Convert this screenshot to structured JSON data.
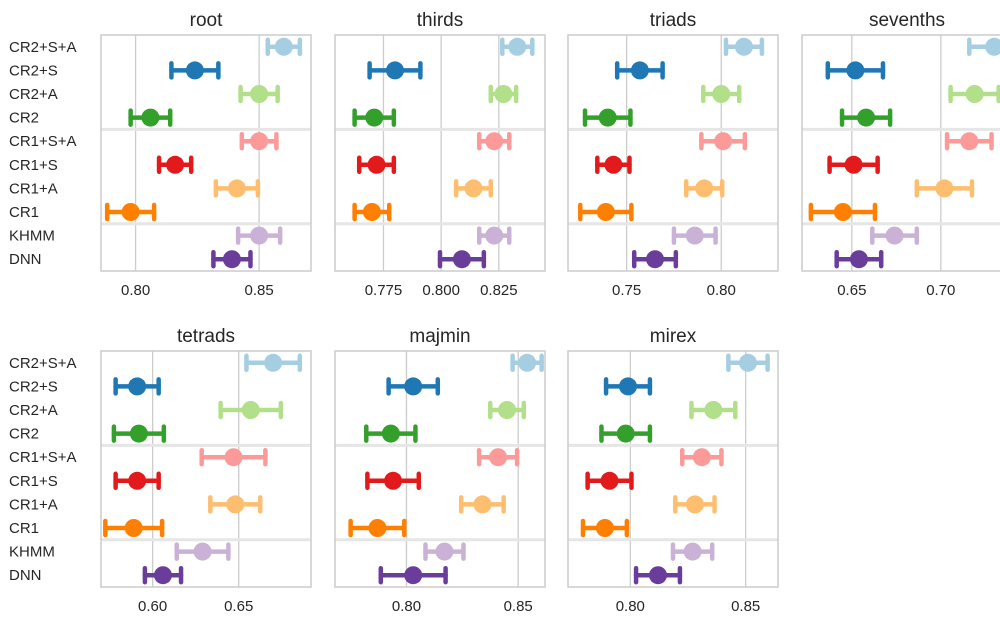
{
  "colors": {
    "CR2+S+A": "#a6cee3",
    "CR2+S": "#1f78b4",
    "CR2+A": "#b2df8a",
    "CR2": "#33a02c",
    "CR1+S+A": "#fb9a99",
    "CR1+S": "#e31a1c",
    "CR1+A": "#fdbf6f",
    "CR1": "#ff7f00",
    "KHMM": "#cab2d6",
    "DNN": "#6a3d9a",
    "grid": "#cccccc",
    "separator": "#e6e6e6",
    "frame": "#cccccc"
  },
  "chart_data": [
    {
      "type": "errorbar",
      "title": "root",
      "categories": [
        "CR2+S+A",
        "CR2+S",
        "CR2+A",
        "CR2",
        "CR1+S+A",
        "CR1+S",
        "CR1+A",
        "CR1",
        "KHMM",
        "DNN"
      ],
      "values": [
        0.86,
        0.824,
        0.85,
        0.806,
        0.85,
        0.816,
        0.841,
        0.798,
        0.85,
        0.839
      ],
      "errors": [
        0.0065,
        0.0095,
        0.0075,
        0.008,
        0.007,
        0.0065,
        0.0085,
        0.0095,
        0.0085,
        0.0075
      ],
      "xlim": [
        0.786,
        0.871
      ],
      "xticks": [
        0.8,
        0.85
      ],
      "xtick_labels": [
        "0.80",
        "0.85"
      ],
      "separators_after": [
        3,
        7
      ],
      "grid": true
    },
    {
      "type": "errorbar",
      "title": "thirds",
      "categories": [
        "CR2+S+A",
        "CR2+S",
        "CR2+A",
        "CR2",
        "CR1+S+A",
        "CR1+S",
        "CR1+A",
        "CR1",
        "KHMM",
        "DNN"
      ],
      "values": [
        0.833,
        0.78,
        0.827,
        0.771,
        0.823,
        0.772,
        0.814,
        0.77,
        0.823,
        0.809
      ],
      "errors": [
        0.0065,
        0.011,
        0.0055,
        0.0085,
        0.0065,
        0.0075,
        0.0075,
        0.0075,
        0.0065,
        0.0095
      ],
      "xlim": [
        0.754,
        0.845
      ],
      "xticks": [
        0.775,
        0.8,
        0.825
      ],
      "xtick_labels": [
        "0.775",
        "0.800",
        "0.825"
      ],
      "separators_after": [
        3,
        7
      ],
      "grid": true
    },
    {
      "type": "errorbar",
      "title": "triads",
      "categories": [
        "CR2+S+A",
        "CR2+S",
        "CR2+A",
        "CR2",
        "CR1+S+A",
        "CR1+S",
        "CR1+A",
        "CR1",
        "KHMM",
        "DNN"
      ],
      "values": [
        0.812,
        0.757,
        0.8,
        0.74,
        0.801,
        0.743,
        0.791,
        0.739,
        0.786,
        0.765
      ],
      "errors": [
        0.0095,
        0.012,
        0.0095,
        0.012,
        0.0115,
        0.0085,
        0.0095,
        0.0135,
        0.011,
        0.011
      ],
      "xlim": [
        0.719,
        0.83
      ],
      "xticks": [
        0.75,
        0.8
      ],
      "xtick_labels": [
        "0.75",
        "0.80"
      ],
      "separators_after": [
        3,
        7
      ],
      "grid": true
    },
    {
      "type": "errorbar",
      "title": "sevenths",
      "categories": [
        "CR2+S+A",
        "CR2+S",
        "CR2+A",
        "CR2",
        "CR1+S+A",
        "CR1+S",
        "CR1+A",
        "CR1",
        "KHMM",
        "DNN"
      ],
      "values": [
        0.73,
        0.652,
        0.719,
        0.658,
        0.716,
        0.651,
        0.702,
        0.645,
        0.674,
        0.654
      ],
      "errors": [
        0.014,
        0.0155,
        0.0135,
        0.0135,
        0.0125,
        0.0135,
        0.0155,
        0.018,
        0.0125,
        0.0125
      ],
      "xlim": [
        0.622,
        0.74
      ],
      "xticks": [
        0.65,
        0.7
      ],
      "xtick_labels": [
        "0.65",
        "0.70"
      ],
      "separators_after": [
        3,
        7
      ],
      "grid": true
    },
    {
      "type": "errorbar",
      "title": "tetrads",
      "categories": [
        "CR2+S+A",
        "CR2+S",
        "CR2+A",
        "CR2",
        "CR1+S+A",
        "CR1+S",
        "CR1+A",
        "CR1",
        "KHMM",
        "DNN"
      ],
      "values": [
        0.67,
        0.591,
        0.657,
        0.592,
        0.647,
        0.591,
        0.648,
        0.589,
        0.629,
        0.606
      ],
      "errors": [
        0.0155,
        0.0125,
        0.0175,
        0.0145,
        0.0185,
        0.0125,
        0.0145,
        0.0165,
        0.015,
        0.0105
      ],
      "xlim": [
        0.57,
        0.692
      ],
      "xticks": [
        0.6,
        0.65
      ],
      "xtick_labels": [
        "0.60",
        "0.65"
      ],
      "separators_after": [
        3,
        7
      ],
      "grid": true
    },
    {
      "type": "errorbar",
      "title": "majmin",
      "categories": [
        "CR2+S+A",
        "CR2+S",
        "CR2+A",
        "CR2",
        "CR1+S+A",
        "CR1+S",
        "CR1+A",
        "CR1",
        "KHMM",
        "DNN"
      ],
      "values": [
        0.854,
        0.803,
        0.845,
        0.793,
        0.841,
        0.794,
        0.834,
        0.787,
        0.817,
        0.803
      ],
      "errors": [
        0.0065,
        0.011,
        0.0075,
        0.011,
        0.0085,
        0.0115,
        0.0095,
        0.012,
        0.0085,
        0.0145
      ],
      "xlim": [
        0.768,
        0.862
      ],
      "xticks": [
        0.8,
        0.85
      ],
      "xtick_labels": [
        "0.80",
        "0.85"
      ],
      "separators_after": [
        3,
        7
      ],
      "grid": true
    },
    {
      "type": "errorbar",
      "title": "mirex",
      "categories": [
        "CR2+S+A",
        "CR2+S",
        "CR2+A",
        "CR2",
        "CR1+S+A",
        "CR1+S",
        "CR1+A",
        "CR1",
        "KHMM",
        "DNN"
      ],
      "values": [
        0.851,
        0.799,
        0.836,
        0.798,
        0.831,
        0.791,
        0.828,
        0.789,
        0.827,
        0.812
      ],
      "errors": [
        0.0085,
        0.0095,
        0.0095,
        0.0105,
        0.0085,
        0.0095,
        0.0085,
        0.0095,
        0.0085,
        0.0095
      ],
      "xlim": [
        0.773,
        0.864
      ],
      "xticks": [
        0.8,
        0.85
      ],
      "xtick_labels": [
        "0.80",
        "0.85"
      ],
      "separators_after": [
        3,
        7
      ],
      "grid": true
    }
  ]
}
